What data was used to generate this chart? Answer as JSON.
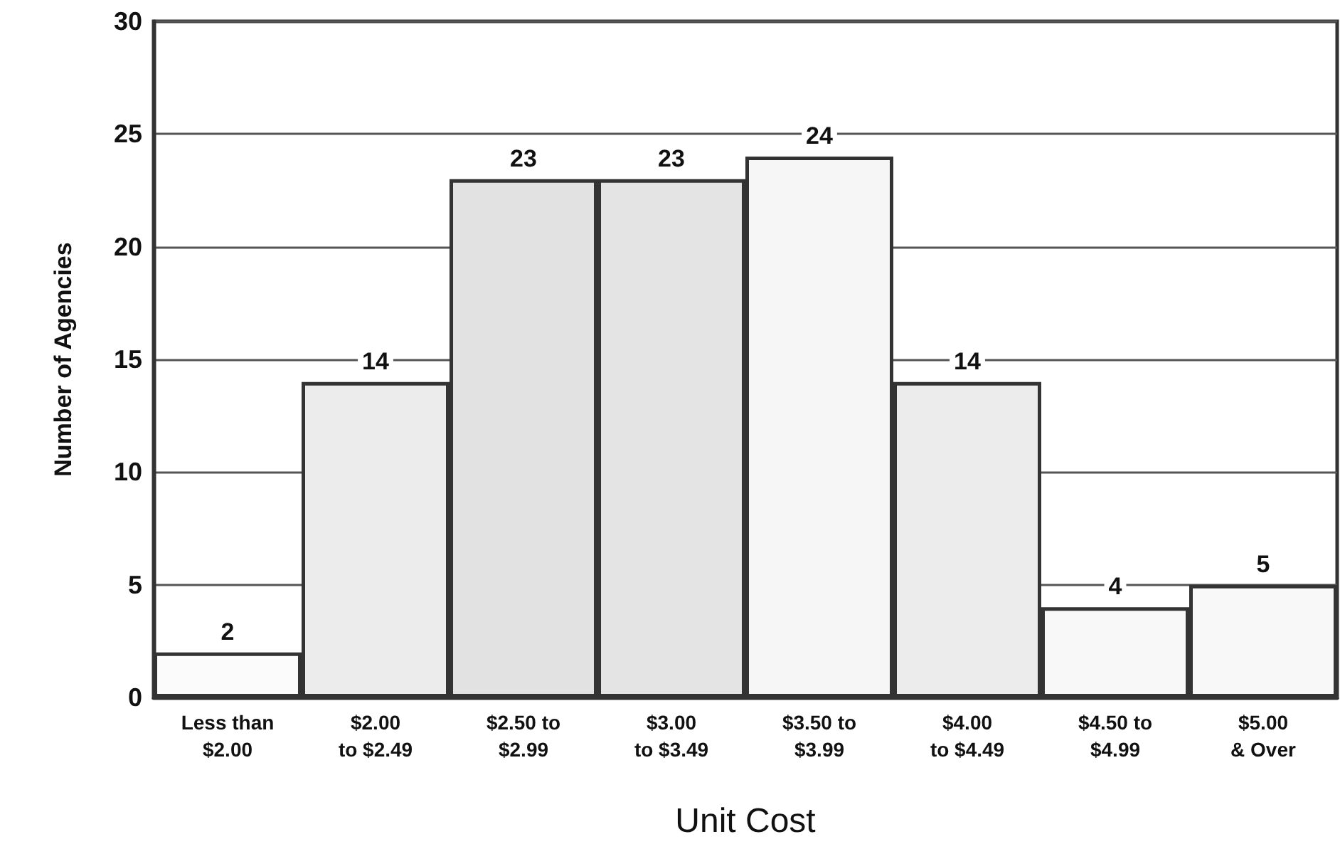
{
  "chart_data": {
    "type": "bar",
    "xlabel": "Unit Cost",
    "ylabel": "Number of Agencies",
    "categories": [
      "Less than\n$2.00",
      "$2.00\nto $2.49",
      "$2.50 to\n$2.99",
      "$3.00\nto $3.49",
      "$3.50 to\n$3.99",
      "$4.00\nto $4.49",
      "$4.50 to\n$4.99",
      "$5.00\n& Over"
    ],
    "values": [
      2,
      14,
      23,
      23,
      24,
      14,
      4,
      5
    ],
    "colors": [
      "#fbfbfb",
      "#ececec",
      "#e2e2e2",
      "#e4e4e4",
      "#f6f6f6",
      "#ececec",
      "#f8f8f8",
      "#f8f8f8"
    ],
    "ylim": [
      0,
      30
    ],
    "yticks": [
      0,
      5,
      10,
      15,
      20,
      25,
      30
    ],
    "grid": "y",
    "data_labels": true
  }
}
